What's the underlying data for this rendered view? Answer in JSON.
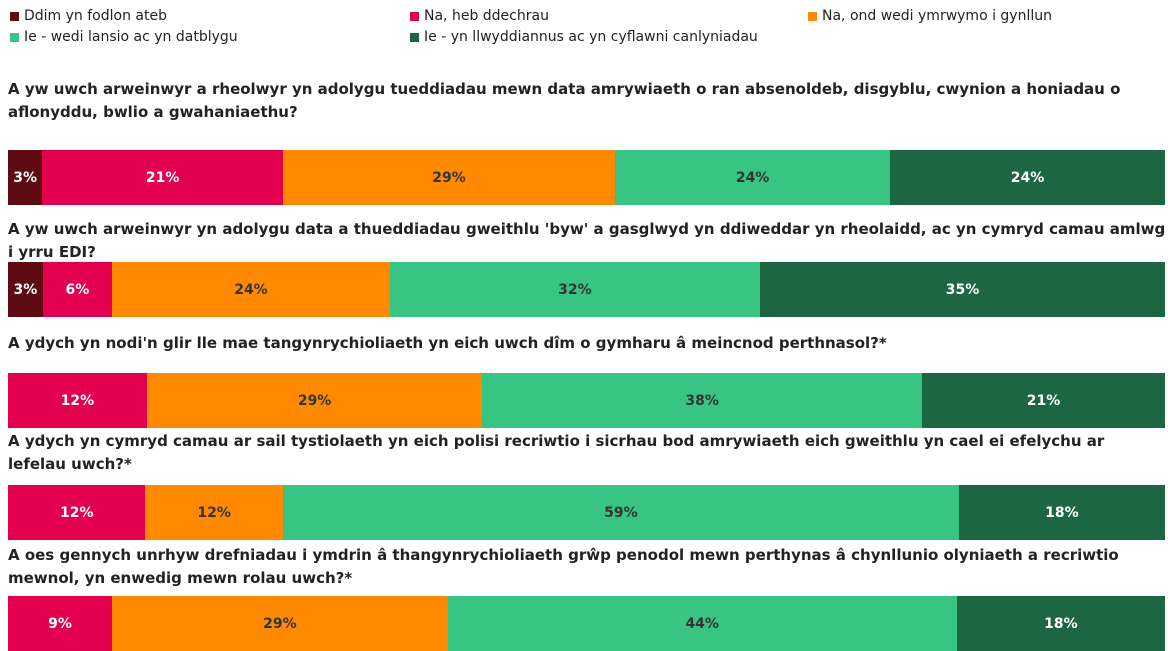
{
  "chart_data": {
    "type": "bar",
    "orientation": "horizontal",
    "stacked": true,
    "legend": "top",
    "categories": [
      "A yw uwch arweinwyr a rheolwyr yn adolygu tueddiadau mewn data amrywiaeth o ran absenoldeb, disgyblu, cwynion a honiadau o aflonyddu, bwlio a gwahaniaethu?",
      "A yw uwch arweinwyr yn adolygu data a thueddiadau gweithlu 'byw' a gasglwyd yn ddiweddar yn rheolaidd, ac yn cymryd camau amlwg i yrru EDI?",
      "A ydych yn nodi'n glir lle mae tangynrychioliaeth yn eich uwch dîm o gymharu â meincnod perthnasol?*",
      "A ydych yn cymryd camau ar sail tystiolaeth yn eich polisi recriwtio i sicrhau bod amrywiaeth eich gweithlu yn cael ei efelychu ar lefelau uwch?*",
      "A oes gennych unrhyw drefniadau i ymdrin â thangynrychioliaeth grŵp penodol mewn perthynas â chynllunio olyniaeth a recriwtio mewnol, yn enwedig mewn rolau uwch?*"
    ],
    "series": [
      {
        "name": "Ddim yn fodlon ateb",
        "color": "#5e0b12",
        "values": [
          3,
          3,
          null,
          null,
          null
        ],
        "value_labels": [
          "3%",
          "3%",
          null,
          null,
          null
        ]
      },
      {
        "name": "Na, heb ddechrau",
        "color": "#e2004f",
        "values": [
          21,
          6,
          12,
          12,
          9
        ],
        "value_labels": [
          "21%",
          "6%",
          "12%",
          "12%",
          "9%"
        ]
      },
      {
        "name": "Na, ond wedi ymrwymo i gynllun",
        "color": "#ff8a00",
        "values": [
          29,
          24,
          29,
          12,
          29
        ],
        "value_labels": [
          "29%",
          "24%",
          "29%",
          "12%",
          "29%"
        ]
      },
      {
        "name": "Ie - wedi lansio ac yn datblygu",
        "color": "#38c584",
        "values": [
          24,
          32,
          38,
          59,
          44
        ],
        "value_labels": [
          "24%",
          "32%",
          "38%",
          "59%",
          "44%"
        ]
      },
      {
        "name": "Ie - yn llwyddiannus ac yn cyflawni canlyniadau",
        "color": "#1d6642",
        "values": [
          24,
          35,
          21,
          18,
          18
        ],
        "value_labels": [
          "24%",
          "35%",
          "21%",
          "18%",
          "18%"
        ]
      }
    ]
  }
}
